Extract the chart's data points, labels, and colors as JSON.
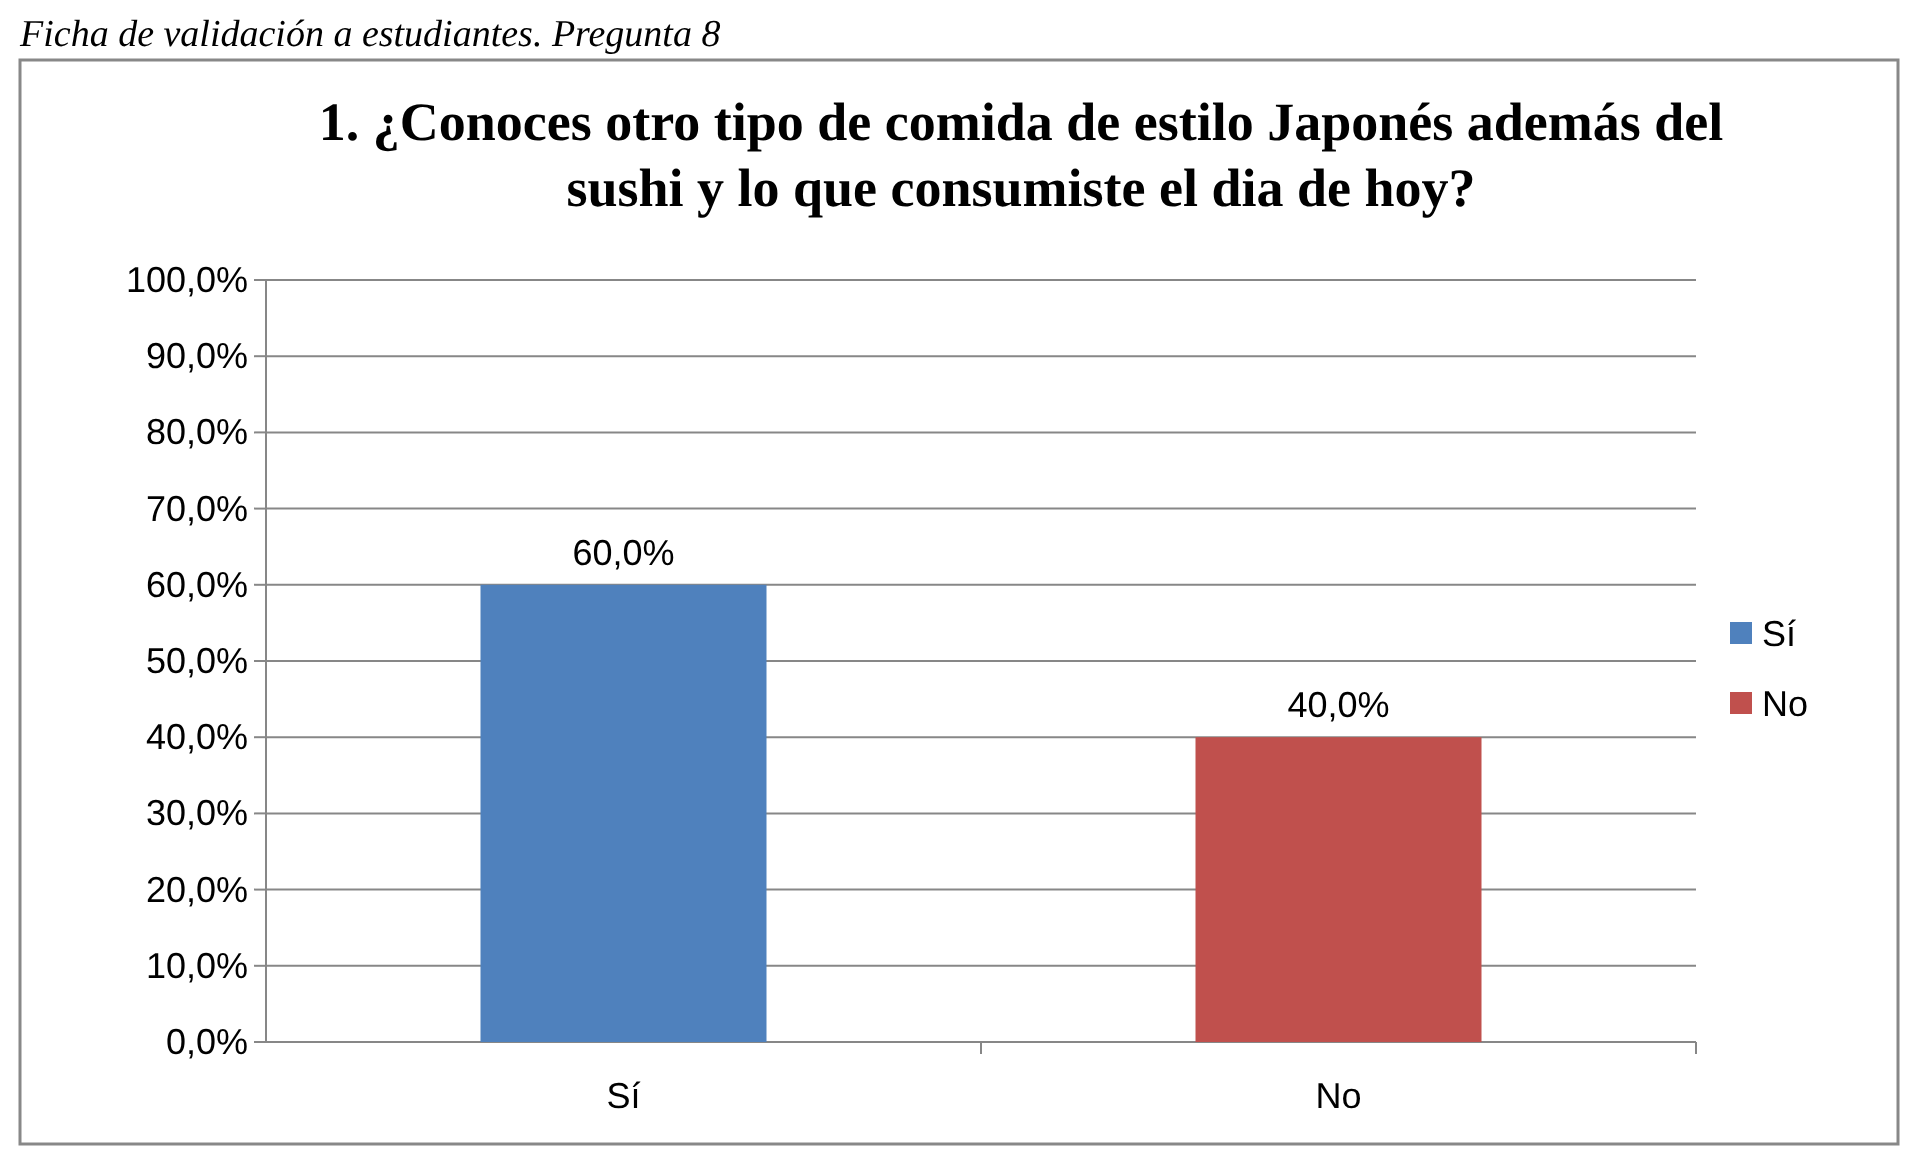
{
  "chart_data": {
    "type": "bar",
    "title": "1. ¿Conoces otro tipo de comida de estilo Japonés además del sushi y lo que consumiste el dia de hoy?",
    "annotations": [
      "Ficha de validación a estudiantes. Pregunta 8"
    ],
    "categories": [
      "Sí",
      "No"
    ],
    "series": [
      {
        "name": "Sí",
        "color": "#4f81bd",
        "values": [
          60,
          null
        ],
        "value_labels": [
          "60,0%",
          null
        ]
      },
      {
        "name": "No",
        "color": "#c0504d",
        "values": [
          null,
          40
        ],
        "value_labels": [
          null,
          "40,0%"
        ]
      }
    ],
    "ylim": [
      0,
      100
    ],
    "yticks": [
      {
        "value": 0,
        "label": "0,0%"
      },
      {
        "value": 10,
        "label": "10,0%"
      },
      {
        "value": 20,
        "label": "20,0%"
      },
      {
        "value": 30,
        "label": "30,0%"
      },
      {
        "value": 40,
        "label": "40,0%"
      },
      {
        "value": 50,
        "label": "50,0%"
      },
      {
        "value": 60,
        "label": "60,0%"
      },
      {
        "value": 70,
        "label": "70,0%"
      },
      {
        "value": 80,
        "label": "80,0%"
      },
      {
        "value": 90,
        "label": "90,0%"
      },
      {
        "value": 100,
        "label": "100,0%"
      }
    ],
    "grid": "y",
    "legend": "right"
  }
}
